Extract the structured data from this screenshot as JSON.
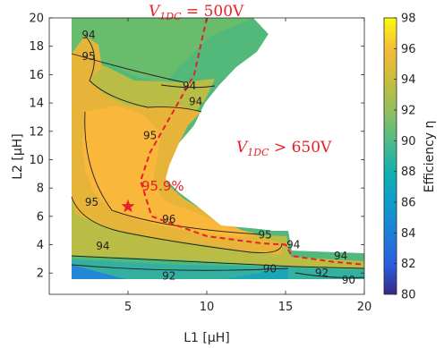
{
  "chart_data": {
    "type": "heatmap",
    "title": "",
    "xlabel": "L1 [μH]",
    "ylabel": "L2 [μH]",
    "colorbar_label": "Efficiency η",
    "xlim": [
      0,
      20
    ],
    "ylim": [
      0.5,
      20
    ],
    "x_ticks": [
      "5",
      "10",
      "15",
      "20"
    ],
    "y_ticks": [
      "2",
      "4",
      "6",
      "8",
      "10",
      "12",
      "14",
      "16",
      "18",
      "20"
    ],
    "colorbar_range": [
      80,
      98
    ],
    "colorbar_ticks": [
      "80",
      "82",
      "84",
      "86",
      "88",
      "90",
      "92",
      "94",
      "96",
      "98"
    ],
    "colormap": "parula",
    "contour_labels": [
      {
        "text": "94",
        "x": 2.5,
        "y": 18.8
      },
      {
        "text": "95",
        "x": 2.5,
        "y": 17.3
      },
      {
        "text": "94",
        "x": 8.9,
        "y": 15.2
      },
      {
        "text": "94",
        "x": 9.3,
        "y": 14.1
      },
      {
        "text": "95",
        "x": 6.4,
        "y": 11.7
      },
      {
        "text": "95",
        "x": 2.7,
        "y": 7.0
      },
      {
        "text": "96",
        "x": 7.6,
        "y": 5.8
      },
      {
        "text": "95",
        "x": 13.7,
        "y": 4.7
      },
      {
        "text": "94",
        "x": 3.4,
        "y": 3.9
      },
      {
        "text": "94",
        "x": 15.5,
        "y": 4.0
      },
      {
        "text": "94",
        "x": 18.5,
        "y": 3.2
      },
      {
        "text": "92",
        "x": 7.6,
        "y": 1.8
      },
      {
        "text": "92",
        "x": 17.3,
        "y": 2.0
      },
      {
        "text": "90",
        "x": 14.0,
        "y": 2.3
      },
      {
        "text": "90",
        "x": 19.0,
        "y": 1.5
      }
    ],
    "boundary_line": {
      "label_prefix": "V",
      "label_sub": "1DC",
      "label_suffix": " = 500V",
      "points": [
        [
          10.0,
          20.0
        ],
        [
          9.2,
          16.0
        ],
        [
          6.4,
          10.5
        ],
        [
          5.8,
          8.5
        ],
        [
          6.5,
          6.0
        ],
        [
          10.0,
          4.6
        ],
        [
          13.5,
          4.1
        ],
        [
          15.0,
          4.0
        ],
        [
          15.4,
          3.2
        ],
        [
          18.0,
          2.8
        ],
        [
          20.0,
          2.6
        ]
      ]
    },
    "region_annotation": {
      "label_prefix": "V",
      "label_sub": "1DC",
      "label_suffix": " > 650V"
    },
    "optimum": {
      "x": 5.0,
      "y": 6.7,
      "label": "95.9%"
    }
  }
}
